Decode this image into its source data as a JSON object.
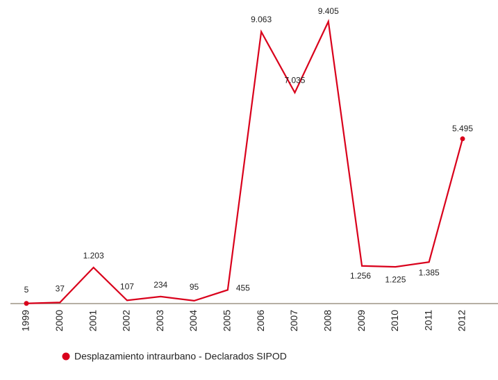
{
  "chart_data": {
    "type": "line",
    "categories": [
      "1999",
      "2000",
      "2001",
      "2002",
      "2003",
      "2004",
      "2005",
      "2006",
      "2007",
      "2008",
      "2009",
      "2010",
      "2011",
      "2012"
    ],
    "series": [
      {
        "name": "Desplazamiento intraurbano - Declarados SIPOD",
        "color": "#d9001b",
        "values": [
          5,
          37,
          1203,
          107,
          234,
          95,
          455,
          9063,
          7035,
          9405,
          1256,
          1225,
          1385,
          5495
        ],
        "value_labels": [
          "5",
          "37",
          "1.203",
          "107",
          "234",
          "95",
          "455",
          "9.063",
          "7.035",
          "9.405",
          "1.256",
          "1.225",
          "1.385",
          "5.495"
        ]
      }
    ]
  }
}
